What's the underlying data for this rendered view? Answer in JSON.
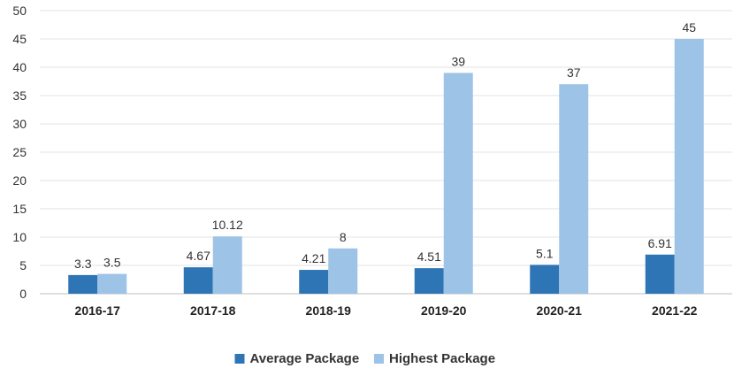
{
  "chart_data": {
    "type": "bar",
    "categories": [
      "2016-17",
      "2017-18",
      "2018-19",
      "2019-20",
      "2020-21",
      "2021-22"
    ],
    "series": [
      {
        "name": "Average Package",
        "values": [
          3.3,
          4.67,
          4.21,
          4.51,
          5.1,
          6.91
        ],
        "color": "#2e75b6"
      },
      {
        "name": "Highest Package",
        "values": [
          3.5,
          10.12,
          8,
          39,
          37,
          45
        ],
        "color": "#9dc3e6"
      }
    ],
    "data_labels": [
      [
        "3.3",
        "4.67",
        "4.21",
        "4.51",
        "5.1",
        "6.91"
      ],
      [
        "3.5",
        "10.12",
        "8",
        "39",
        "37",
        "45"
      ]
    ],
    "y_ticks": [
      "0",
      "5",
      "10",
      "15",
      "20",
      "25",
      "30",
      "35",
      "40",
      "45",
      "50"
    ],
    "ylim": [
      0,
      50
    ],
    "grid": true,
    "legend_position": "bottom-center",
    "title": "",
    "xlabel": "",
    "ylabel": ""
  }
}
